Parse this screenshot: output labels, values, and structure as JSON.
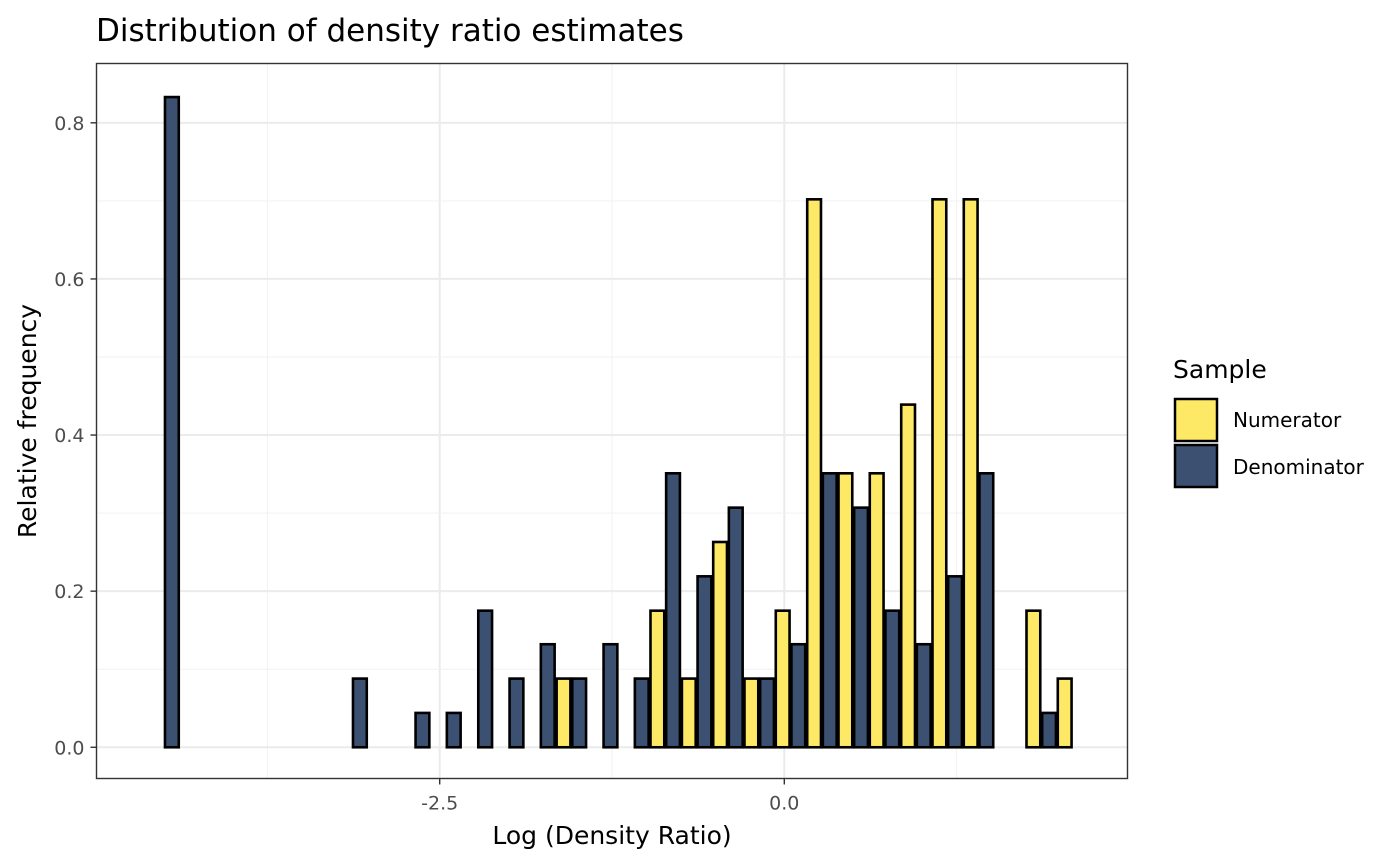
{
  "chart_data": {
    "type": "bar",
    "title": "Distribution of density ratio estimates",
    "xlabel": "Log (Density Ratio)",
    "ylabel": "Relative frequency",
    "xlim": [
      -4.99,
      2.49
    ],
    "ylim": [
      -0.04,
      0.876
    ],
    "xticks": [
      {
        "value": -2.5,
        "label": "-2.5"
      },
      {
        "value": 0.0,
        "label": "0.0"
      }
    ],
    "yticks": [
      {
        "value": 0.0,
        "label": "0.0"
      },
      {
        "value": 0.2,
        "label": "0.2"
      },
      {
        "value": 0.4,
        "label": "0.4"
      },
      {
        "value": 0.6,
        "label": "0.6"
      },
      {
        "value": 0.8,
        "label": "0.8"
      }
    ],
    "grid": true,
    "bin_width": 0.2272,
    "legend": {
      "title": "Sample",
      "position": "right"
    },
    "series": [
      {
        "name": "Numerator",
        "color": "#fde966",
        "bins": [
          {
            "x": -4.5,
            "y": 0.0
          },
          {
            "x": -4.273,
            "y": 0.0
          },
          {
            "x": -4.045,
            "y": 0.0
          },
          {
            "x": -3.818,
            "y": 0.0
          },
          {
            "x": -3.591,
            "y": 0.0
          },
          {
            "x": -3.364,
            "y": 0.0
          },
          {
            "x": -3.136,
            "y": 0.0
          },
          {
            "x": -2.909,
            "y": 0.0
          },
          {
            "x": -2.682,
            "y": 0.0
          },
          {
            "x": -2.455,
            "y": 0.0
          },
          {
            "x": -2.227,
            "y": 0.0
          },
          {
            "x": -2.0,
            "y": 0.0
          },
          {
            "x": -1.773,
            "y": 0.0
          },
          {
            "x": -1.545,
            "y": 0.088
          },
          {
            "x": -1.318,
            "y": 0.0
          },
          {
            "x": -1.091,
            "y": 0.0
          },
          {
            "x": -0.864,
            "y": 0.175
          },
          {
            "x": -0.636,
            "y": 0.088
          },
          {
            "x": -0.409,
            "y": 0.263
          },
          {
            "x": -0.182,
            "y": 0.088
          },
          {
            "x": 0.045,
            "y": 0.175
          },
          {
            "x": 0.273,
            "y": 0.702
          },
          {
            "x": 0.5,
            "y": 0.351
          },
          {
            "x": 0.727,
            "y": 0.351
          },
          {
            "x": 0.955,
            "y": 0.439
          },
          {
            "x": 1.182,
            "y": 0.702
          },
          {
            "x": 1.409,
            "y": 0.702
          },
          {
            "x": 1.636,
            "y": 0.0
          },
          {
            "x": 1.864,
            "y": 0.175
          },
          {
            "x": 2.091,
            "y": 0.088
          }
        ]
      },
      {
        "name": "Denominator",
        "color": "#3c5171",
        "bins": [
          {
            "x": -4.5,
            "y": 0.833
          },
          {
            "x": -4.273,
            "y": 0.0
          },
          {
            "x": -4.045,
            "y": 0.0
          },
          {
            "x": -3.818,
            "y": 0.0
          },
          {
            "x": -3.591,
            "y": 0.0
          },
          {
            "x": -3.364,
            "y": 0.0
          },
          {
            "x": -3.136,
            "y": 0.088
          },
          {
            "x": -2.909,
            "y": 0.0
          },
          {
            "x": -2.682,
            "y": 0.044
          },
          {
            "x": -2.455,
            "y": 0.044
          },
          {
            "x": -2.227,
            "y": 0.175
          },
          {
            "x": -2.0,
            "y": 0.088
          },
          {
            "x": -1.773,
            "y": 0.132
          },
          {
            "x": -1.545,
            "y": 0.088
          },
          {
            "x": -1.318,
            "y": 0.132
          },
          {
            "x": -1.091,
            "y": 0.088
          },
          {
            "x": -0.864,
            "y": 0.351
          },
          {
            "x": -0.636,
            "y": 0.219
          },
          {
            "x": -0.409,
            "y": 0.307
          },
          {
            "x": -0.182,
            "y": 0.088
          },
          {
            "x": 0.045,
            "y": 0.132
          },
          {
            "x": 0.273,
            "y": 0.351
          },
          {
            "x": 0.5,
            "y": 0.307
          },
          {
            "x": 0.727,
            "y": 0.175
          },
          {
            "x": 0.955,
            "y": 0.132
          },
          {
            "x": 1.182,
            "y": 0.219
          },
          {
            "x": 1.409,
            "y": 0.351
          },
          {
            "x": 1.636,
            "y": 0.0
          },
          {
            "x": 1.864,
            "y": 0.044
          },
          {
            "x": 2.091,
            "y": 0.0
          }
        ]
      }
    ]
  }
}
